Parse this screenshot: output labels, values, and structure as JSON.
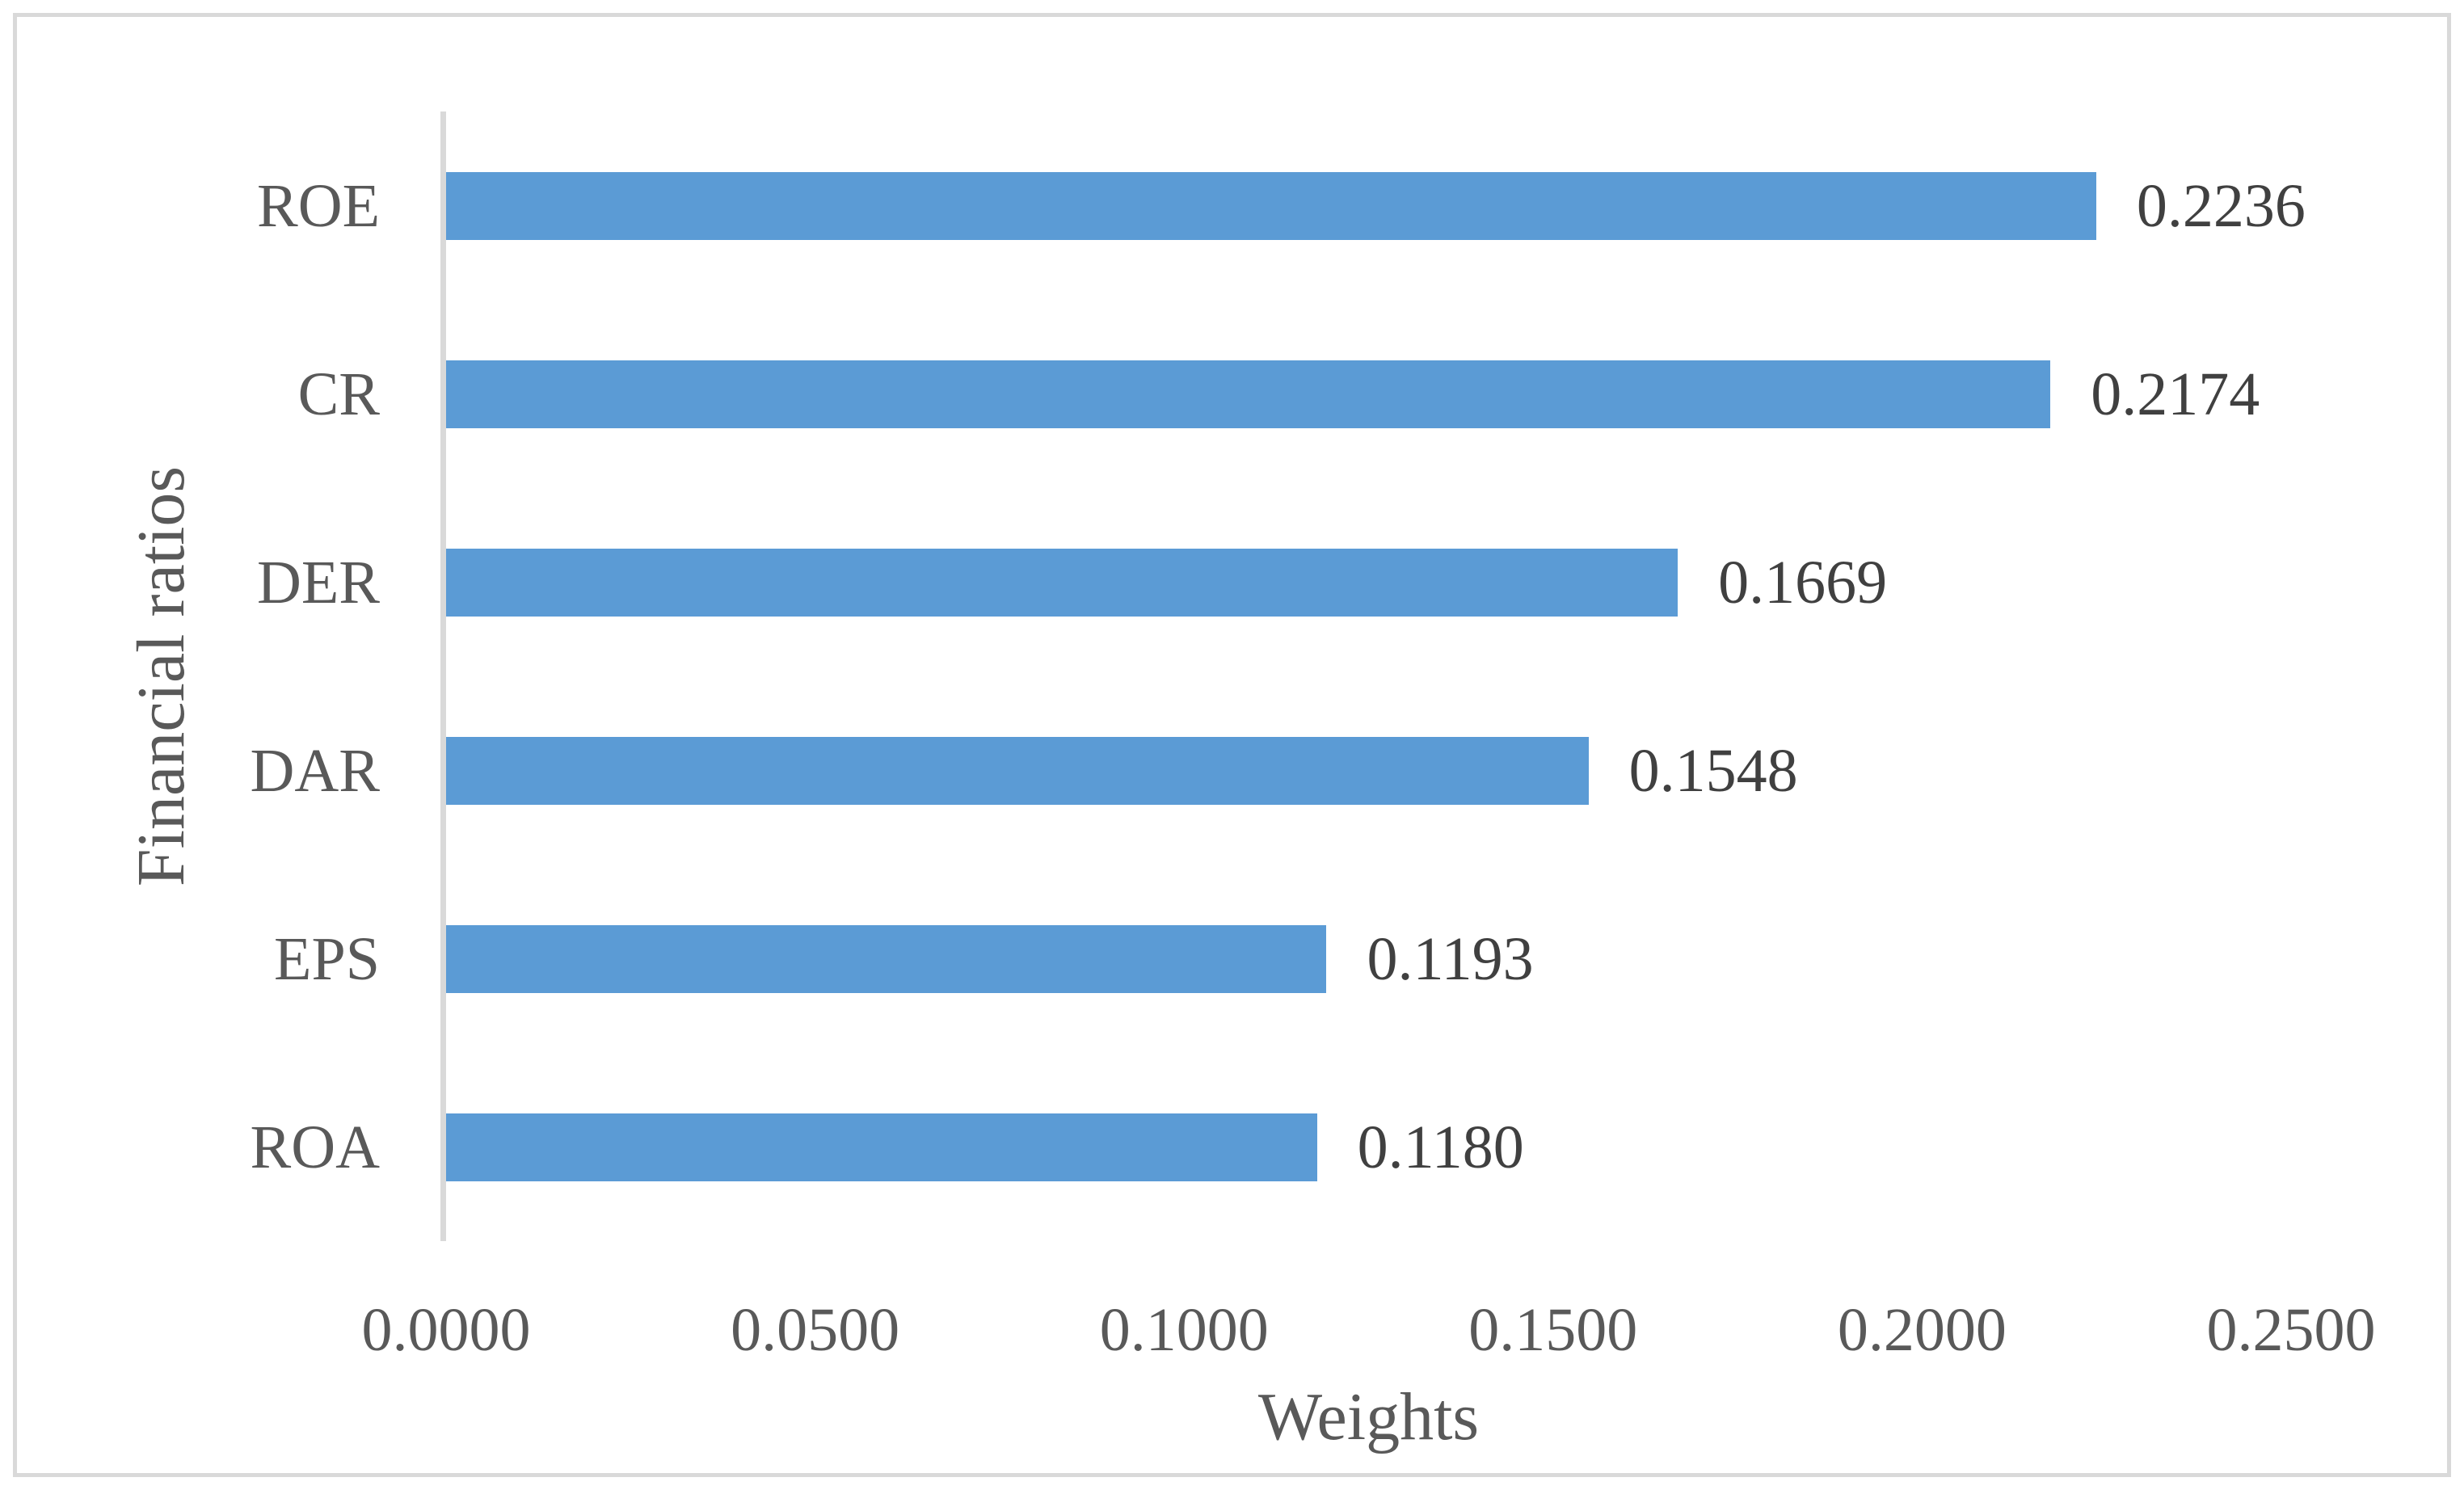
{
  "chart_data": {
    "type": "bar",
    "orientation": "horizontal",
    "title": "",
    "xlabel": "Weights",
    "ylabel": "Financial ratios",
    "categories": [
      "ROE",
      "CR",
      "DER",
      "DAR",
      "EPS",
      "ROA"
    ],
    "values": [
      0.2236,
      0.2174,
      0.1669,
      0.1548,
      0.1193,
      0.118
    ],
    "data_labels": [
      "0.2236",
      "0.2174",
      "0.1669",
      "0.1548",
      "0.1193",
      "0.1180"
    ],
    "xlim": [
      0,
      0.25
    ],
    "xticks": [
      0,
      0.05,
      0.1,
      0.15,
      0.2,
      0.25
    ],
    "xtick_labels": [
      "0.0000",
      "0.0500",
      "0.1000",
      "0.1500",
      "0.2000",
      "0.2500"
    ],
    "grid": false,
    "legend_position": "none",
    "colors": {
      "bar": "#5B9BD5",
      "axis_line": "#D9D9D9",
      "frame_border": "#D9D9D9",
      "data_label_text": "#404040",
      "axis_text": "#595959"
    }
  }
}
